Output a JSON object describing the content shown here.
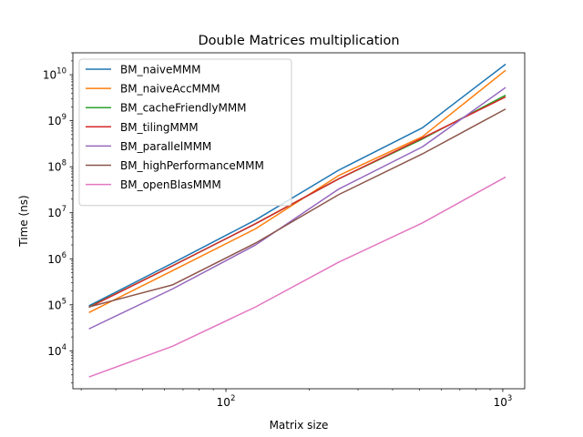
{
  "chart_data": {
    "type": "line",
    "title": "Double  Matrices multiplication",
    "xlabel": "Matrix size",
    "ylabel": "Time (ns)",
    "xscale": "log",
    "yscale": "log",
    "xlim": [
      28,
      1200
    ],
    "ylim": [
      1500,
      30000000000
    ],
    "grid": false,
    "legend_position": "top-left",
    "x": [
      32,
      64,
      128,
      256,
      512,
      1024
    ],
    "x_ticks": [
      {
        "value": 100,
        "base": "10",
        "exp": "2"
      },
      {
        "value": 1000,
        "base": "10",
        "exp": "3"
      }
    ],
    "y_ticks": [
      {
        "value": 10000,
        "base": "10",
        "exp": "4"
      },
      {
        "value": 100000,
        "base": "10",
        "exp": "5"
      },
      {
        "value": 1000000,
        "base": "10",
        "exp": "6"
      },
      {
        "value": 10000000,
        "base": "10",
        "exp": "7"
      },
      {
        "value": 100000000,
        "base": "10",
        "exp": "8"
      },
      {
        "value": 1000000000,
        "base": "10",
        "exp": "9"
      },
      {
        "value": 10000000000,
        "base": "10",
        "exp": "10"
      }
    ],
    "series": [
      {
        "name": "BM_naiveMMM",
        "color": "#1f77b4",
        "values": [
          95000,
          800000,
          7000000,
          85000000,
          700000000,
          17000000000
        ]
      },
      {
        "name": "BM_naiveAccMMM",
        "color": "#ff7f0e",
        "values": [
          68000,
          550000,
          4500000,
          65000000,
          450000000,
          12500000000
        ]
      },
      {
        "name": "BM_cacheFriendlyMMM",
        "color": "#2ca02c",
        "values": [
          90000,
          700000,
          5800000,
          55000000,
          400000000,
          3600000000
        ]
      },
      {
        "name": "BM_tilingMMM",
        "color": "#d62728",
        "values": [
          88000,
          700000,
          5800000,
          55000000,
          420000000,
          3300000000
        ]
      },
      {
        "name": "BM_parallelMMM",
        "color": "#9467bd",
        "values": [
          30000,
          220000,
          2000000,
          33000000,
          270000000,
          5300000000
        ]
      },
      {
        "name": "BM_highPerformanceMMM",
        "color": "#8c564b",
        "values": [
          90000,
          270000,
          2200000,
          25000000,
          190000000,
          1800000000
        ]
      },
      {
        "name": "BM_openBlasMMM",
        "color": "#e377c2",
        "values": [
          2700,
          12500,
          90000,
          850000,
          6000000,
          60000000
        ]
      }
    ]
  }
}
